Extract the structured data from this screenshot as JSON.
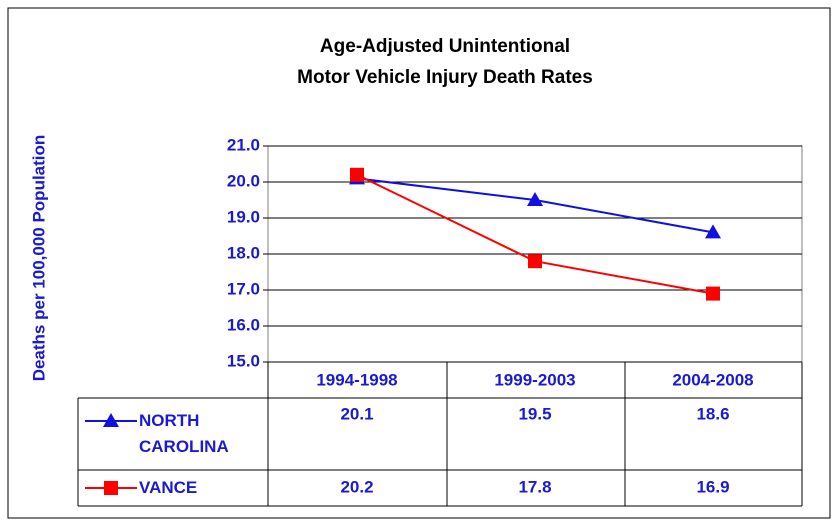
{
  "chart_data": {
    "type": "line",
    "title": "Age-Adjusted Unintentional Motor Vehicle Injury Death Rates",
    "y_label": "Deaths per 100,000 Population",
    "categories": [
      "1994-1998",
      "1999-2003",
      "2004-2008"
    ],
    "series": [
      {
        "name": "NORTH CAROLINA",
        "color": "#1010e0",
        "marker": "triangle",
        "values": [
          20.1,
          19.5,
          18.6
        ]
      },
      {
        "name": "VANCE",
        "color": "#ff0000",
        "marker": "square",
        "values": [
          20.2,
          17.8,
          16.9
        ]
      }
    ],
    "ylim": [
      15,
      21
    ],
    "yticks": [
      {
        "value": 15,
        "label": "15.0"
      },
      {
        "value": 16,
        "label": "16.0"
      },
      {
        "value": 17,
        "label": "17.0"
      },
      {
        "value": 18,
        "label": "18.0"
      },
      {
        "value": 19,
        "label": "19.0"
      },
      {
        "value": 20,
        "label": "20.0"
      },
      {
        "value": 21,
        "label": "21.0"
      }
    ],
    "grid": true
  }
}
